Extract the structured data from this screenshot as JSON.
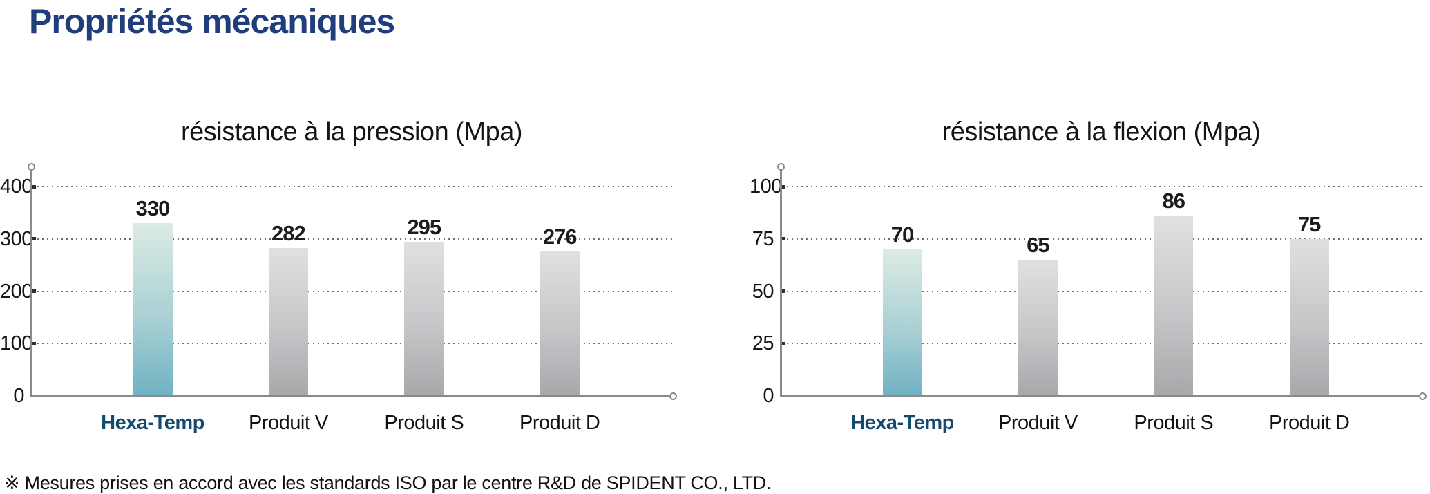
{
  "page": {
    "title": "Propriétés mécaniques",
    "footnote": "※ Mesures prises en accord avec les standards ISO par le centre R&D de SPIDENT CO., LTD."
  },
  "colors": {
    "page_title": "#203d7c",
    "chart_title": "#141414",
    "tick_label": "#161616",
    "value_label": "#1c1c1c",
    "category": "#121212",
    "category_highlight": "#134a6e",
    "axis": "#8a8a8a",
    "grid": "#6f6f6f",
    "bar_teal_top": "#dcebe4",
    "bar_teal_mid": "#a9d0d4",
    "bar_teal_bottom": "#6fb2c3",
    "bar_gray_top": "#e0e0e2",
    "bar_gray_mid": "#c6c6c9",
    "bar_gray_bottom": "#a8a8ab"
  },
  "chart_data": [
    {
      "type": "bar",
      "title": "résistance à la pression (Mpa)",
      "categories": [
        "Hexa-Temp",
        "Produit V",
        "Produit S",
        "Produit D"
      ],
      "values": [
        330,
        282,
        295,
        276
      ],
      "highlight_index": 0,
      "highlight_category": "Hexa-Temp",
      "ylim": [
        0,
        400
      ],
      "yticks": [
        0,
        100,
        200,
        300,
        400
      ],
      "xlabel": "",
      "ylabel": "",
      "grid": "horizontal-dotted",
      "legend": "none"
    },
    {
      "type": "bar",
      "title": "résistance à la flexion (Mpa)",
      "categories": [
        "Hexa-Temp",
        "Produit V",
        "Produit S",
        "Produit D"
      ],
      "values": [
        70,
        65,
        86,
        75
      ],
      "highlight_index": 0,
      "highlight_category": "Hexa-Temp",
      "ylim": [
        0,
        100
      ],
      "yticks": [
        0,
        25,
        50,
        75,
        100
      ],
      "xlabel": "",
      "ylabel": "",
      "grid": "horizontal-dotted",
      "legend": "none"
    }
  ]
}
